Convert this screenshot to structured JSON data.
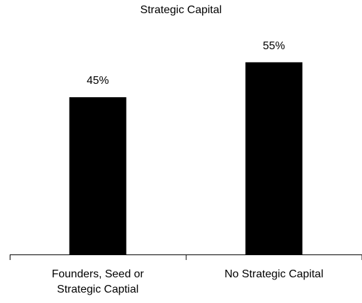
{
  "chart_data": {
    "type": "bar",
    "title": "Strategic Capital",
    "categories": [
      "Founders, Seed or Strategic Captial",
      "No Strategic Capital"
    ],
    "values": [
      45,
      55
    ],
    "value_labels": [
      "45%",
      "55%"
    ],
    "color": "#000000"
  }
}
